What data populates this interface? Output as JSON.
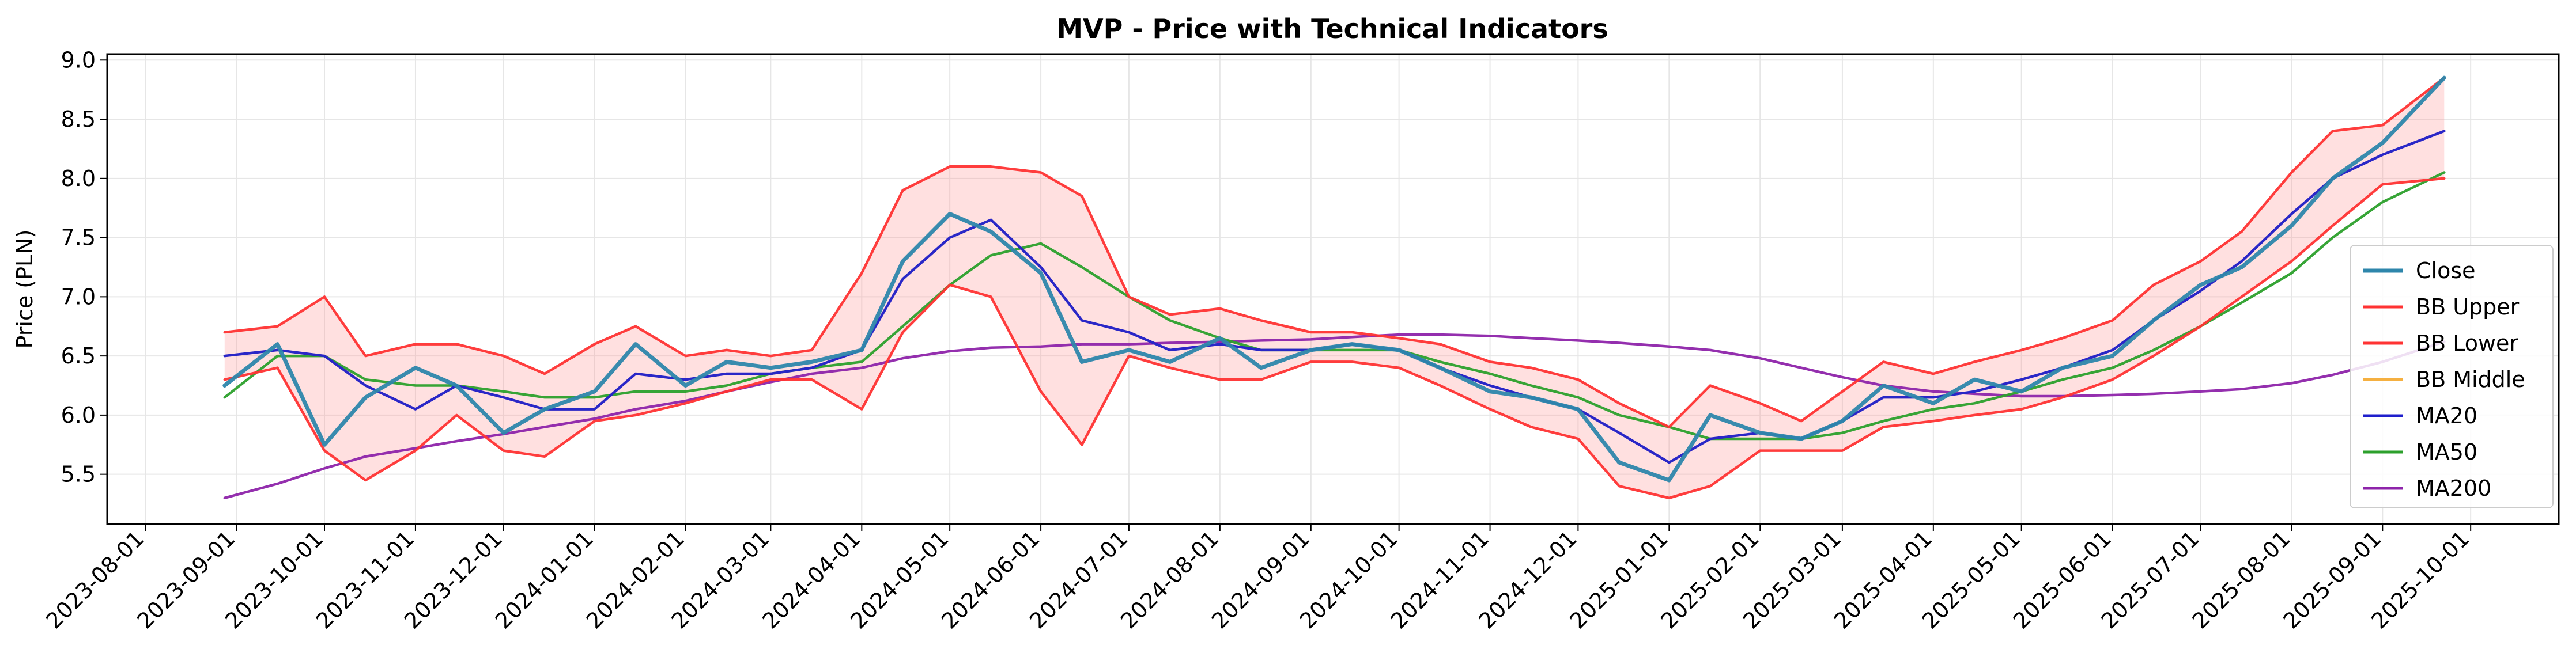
{
  "chart_data": {
    "type": "line",
    "title": "MVP - Price with Technical Indicators",
    "xlabel": "",
    "ylabel": "Price (PLN)",
    "ylim": [
      5.08,
      9.05
    ],
    "xlim": [
      "2023-07-19",
      "2025-10-31"
    ],
    "grid": true,
    "legend_position": "right",
    "y_ticks": [
      "5.5",
      "6.0",
      "6.5",
      "7.0",
      "7.5",
      "8.0",
      "8.5",
      "9.0"
    ],
    "x_ticks": [
      "2023-08-01",
      "2023-09-01",
      "2023-10-01",
      "2023-11-01",
      "2023-12-01",
      "2024-01-01",
      "2024-02-01",
      "2024-03-01",
      "2024-04-01",
      "2024-05-01",
      "2024-06-01",
      "2024-07-01",
      "2024-08-01",
      "2024-09-01",
      "2024-10-01",
      "2024-11-01",
      "2024-12-01",
      "2025-01-01",
      "2025-02-01",
      "2025-03-01",
      "2025-04-01",
      "2025-05-01",
      "2025-06-01",
      "2025-07-01",
      "2025-08-01",
      "2025-09-01",
      "2025-10-01"
    ],
    "x": [
      "2023-08-28",
      "2023-09-15",
      "2023-10-01",
      "2023-10-15",
      "2023-11-01",
      "2023-11-15",
      "2023-12-01",
      "2023-12-15",
      "2024-01-01",
      "2024-01-15",
      "2024-02-01",
      "2024-02-15",
      "2024-03-01",
      "2024-03-15",
      "2024-04-01",
      "2024-04-15",
      "2024-05-01",
      "2024-05-15",
      "2024-06-01",
      "2024-06-15",
      "2024-07-01",
      "2024-07-15",
      "2024-08-01",
      "2024-08-15",
      "2024-09-01",
      "2024-09-15",
      "2024-10-01",
      "2024-10-15",
      "2024-11-01",
      "2024-11-15",
      "2024-12-01",
      "2024-12-15",
      "2025-01-01",
      "2025-01-15",
      "2025-02-01",
      "2025-02-15",
      "2025-03-01",
      "2025-03-15",
      "2025-04-01",
      "2025-04-15",
      "2025-05-01",
      "2025-05-15",
      "2025-06-01",
      "2025-06-15",
      "2025-07-01",
      "2025-07-15",
      "2025-08-01",
      "2025-08-15",
      "2025-09-01",
      "2025-09-22"
    ],
    "series": [
      {
        "name": "Close",
        "color": "#2e86ab",
        "values": [
          6.25,
          6.6,
          5.75,
          6.15,
          6.4,
          6.25,
          5.85,
          6.05,
          6.2,
          6.6,
          6.25,
          6.45,
          6.4,
          6.45,
          6.55,
          7.3,
          7.7,
          7.55,
          7.2,
          6.45,
          6.55,
          6.45,
          6.65,
          6.4,
          6.55,
          6.6,
          6.55,
          6.4,
          6.2,
          6.15,
          6.05,
          5.6,
          5.45,
          6.0,
          5.85,
          5.8,
          5.95,
          6.25,
          6.1,
          6.3,
          6.2,
          6.4,
          6.5,
          6.8,
          7.1,
          7.25,
          7.6,
          8.0,
          8.3,
          8.85
        ]
      },
      {
        "name": "BB Upper",
        "color": "#ff3333",
        "values": [
          6.7,
          6.75,
          7.0,
          6.5,
          6.6,
          6.6,
          6.5,
          6.35,
          6.6,
          6.75,
          6.5,
          6.55,
          6.5,
          6.55,
          7.2,
          7.9,
          8.1,
          8.1,
          8.05,
          7.85,
          7.0,
          6.85,
          6.9,
          6.8,
          6.7,
          6.7,
          6.65,
          6.6,
          6.45,
          6.4,
          6.3,
          6.1,
          5.9,
          6.25,
          6.1,
          5.95,
          6.2,
          6.45,
          6.35,
          6.45,
          6.55,
          6.65,
          6.8,
          7.1,
          7.3,
          7.55,
          8.05,
          8.4,
          8.45,
          8.85
        ]
      },
      {
        "name": "BB Lower",
        "color": "#ff3333",
        "values": [
          6.3,
          6.4,
          5.7,
          5.45,
          5.7,
          6.0,
          5.7,
          5.65,
          5.95,
          6.0,
          6.1,
          6.2,
          6.3,
          6.3,
          6.05,
          6.7,
          7.1,
          7.0,
          6.2,
          5.75,
          6.5,
          6.4,
          6.3,
          6.3,
          6.45,
          6.45,
          6.4,
          6.25,
          6.05,
          5.9,
          5.8,
          5.4,
          5.3,
          5.4,
          5.7,
          5.7,
          5.7,
          5.9,
          5.95,
          6.0,
          6.05,
          6.15,
          6.3,
          6.5,
          6.75,
          7.0,
          7.3,
          7.6,
          7.95,
          8.0
        ]
      },
      {
        "name": "BB Middle",
        "color": "#f5b041",
        "values": [
          6.5,
          6.55,
          6.5,
          6.25,
          6.05,
          6.25,
          6.15,
          6.05,
          6.05,
          6.35,
          6.3,
          6.35,
          6.35,
          6.4,
          6.55,
          7.15,
          7.5,
          7.65,
          7.25,
          6.8,
          6.7,
          6.55,
          6.6,
          6.55,
          6.55,
          6.6,
          6.55,
          6.4,
          6.25,
          6.15,
          6.05,
          5.85,
          5.6,
          5.8,
          5.85,
          5.8,
          5.95,
          6.15,
          6.15,
          6.2,
          6.3,
          6.4,
          6.55,
          6.8,
          7.05,
          7.3,
          7.7,
          8.0,
          8.2,
          8.4
        ]
      },
      {
        "name": "MA20",
        "color": "#1f1fcc",
        "values": [
          6.5,
          6.55,
          6.5,
          6.25,
          6.05,
          6.25,
          6.15,
          6.05,
          6.05,
          6.35,
          6.3,
          6.35,
          6.35,
          6.4,
          6.55,
          7.15,
          7.5,
          7.65,
          7.25,
          6.8,
          6.7,
          6.55,
          6.6,
          6.55,
          6.55,
          6.6,
          6.55,
          6.4,
          6.25,
          6.15,
          6.05,
          5.85,
          5.6,
          5.8,
          5.85,
          5.8,
          5.95,
          6.15,
          6.15,
          6.2,
          6.3,
          6.4,
          6.55,
          6.8,
          7.05,
          7.3,
          7.7,
          8.0,
          8.2,
          8.4
        ]
      },
      {
        "name": "MA50",
        "color": "#2ca02c",
        "values": [
          6.15,
          6.5,
          6.5,
          6.3,
          6.25,
          6.25,
          6.2,
          6.15,
          6.15,
          6.2,
          6.2,
          6.25,
          6.35,
          6.4,
          6.45,
          6.75,
          7.1,
          7.35,
          7.45,
          7.25,
          7.0,
          6.8,
          6.65,
          6.55,
          6.55,
          6.55,
          6.55,
          6.45,
          6.35,
          6.25,
          6.15,
          6.0,
          5.9,
          5.8,
          5.8,
          5.8,
          5.85,
          5.95,
          6.05,
          6.1,
          6.2,
          6.3,
          6.4,
          6.55,
          6.75,
          6.95,
          7.2,
          7.5,
          7.8,
          8.05
        ]
      },
      {
        "name": "MA200",
        "color": "#8e24aa",
        "values": [
          5.3,
          5.42,
          5.55,
          5.65,
          5.72,
          5.78,
          5.84,
          5.9,
          5.97,
          6.05,
          6.12,
          6.2,
          6.28,
          6.35,
          6.4,
          6.48,
          6.54,
          6.57,
          6.58,
          6.6,
          6.6,
          6.61,
          6.62,
          6.63,
          6.64,
          6.66,
          6.68,
          6.68,
          6.67,
          6.65,
          6.63,
          6.61,
          6.58,
          6.55,
          6.48,
          6.4,
          6.32,
          6.25,
          6.2,
          6.18,
          6.16,
          6.16,
          6.17,
          6.18,
          6.2,
          6.22,
          6.27,
          6.34,
          6.45,
          6.62
        ]
      }
    ],
    "legend": [
      "Close",
      "BB Upper",
      "BB Lower",
      "BB Middle",
      "MA20",
      "MA50",
      "MA200"
    ],
    "colors": {
      "band_fill": "#ff9999",
      "grid": "#e6e6e6"
    }
  }
}
